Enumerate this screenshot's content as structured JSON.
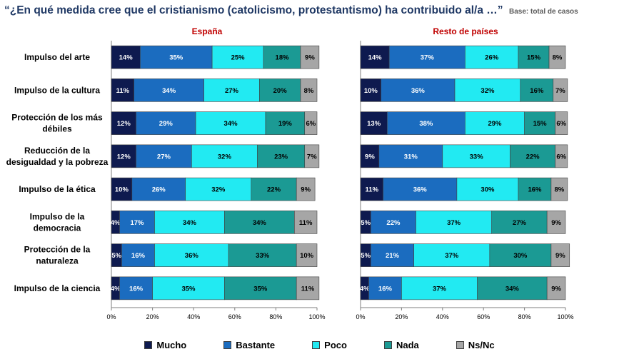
{
  "title": {
    "question": "“¿En qué medida cree que el cristianismo (catolicismo, protestantismo) ha contribuido al/a …”",
    "base": "Base: total de casos"
  },
  "colors": {
    "Mucho": "#0e1a4f",
    "Bastante": "#1b6cbf",
    "Poco": "#22eaf2",
    "Nada": "#1b9a94",
    "Ns/Nc": "#a6a6a6"
  },
  "legend": [
    "Mucho",
    "Bastante",
    "Poco",
    "Nada",
    "Ns/Nc"
  ],
  "chart_data": [
    {
      "type": "bar",
      "orientation": "horizontal",
      "stacked": true,
      "title": "España",
      "categories": [
        "Impulso del arte",
        "Impulso de la cultura",
        "Protección de los más débiles",
        "Reducción de la desigualdad y la pobreza",
        "Impulso de la ética",
        "Impulso de la democracia",
        "Protección de la naturaleza",
        "Impulso de la ciencia"
      ],
      "category_lines": [
        [
          "Impulso del arte"
        ],
        [
          "Impulso de la cultura"
        ],
        [
          "Protección de los más",
          "débiles"
        ],
        [
          "Reducción de la",
          "desigualdad y la pobreza"
        ],
        [
          "Impulso de la ética"
        ],
        [
          "Impulso de la",
          "democracia"
        ],
        [
          "Protección de la",
          "naturaleza"
        ],
        [
          "Impulso de la ciencia"
        ]
      ],
      "series": [
        {
          "name": "Mucho",
          "values": [
            14,
            11,
            12,
            12,
            10,
            4,
            5,
            4
          ]
        },
        {
          "name": "Bastante",
          "values": [
            35,
            34,
            29,
            27,
            26,
            17,
            16,
            16
          ]
        },
        {
          "name": "Poco",
          "values": [
            25,
            27,
            34,
            32,
            32,
            34,
            36,
            35
          ]
        },
        {
          "name": "Nada",
          "values": [
            18,
            20,
            19,
            23,
            22,
            34,
            33,
            35
          ]
        },
        {
          "name": "Ns/Nc",
          "values": [
            9,
            8,
            6,
            7,
            9,
            11,
            10,
            11
          ]
        }
      ],
      "xlim": [
        0,
        100
      ],
      "xticks": [
        "0%",
        "20%",
        "40%",
        "60%",
        "80%",
        "100%"
      ]
    },
    {
      "type": "bar",
      "orientation": "horizontal",
      "stacked": true,
      "title": "Resto de países",
      "categories": [
        "Impulso del arte",
        "Impulso de la cultura",
        "Protección de los más débiles",
        "Reducción de la desigualdad y la pobreza",
        "Impulso de la ética",
        "Impulso de la democracia",
        "Protección de la naturaleza",
        "Impulso de la ciencia"
      ],
      "series": [
        {
          "name": "Mucho",
          "values": [
            14,
            10,
            13,
            9,
            11,
            5,
            5,
            4
          ]
        },
        {
          "name": "Bastante",
          "values": [
            37,
            36,
            38,
            31,
            36,
            22,
            21,
            16
          ]
        },
        {
          "name": "Poco",
          "values": [
            26,
            32,
            29,
            33,
            30,
            37,
            37,
            37
          ]
        },
        {
          "name": "Nada",
          "values": [
            15,
            16,
            15,
            22,
            16,
            27,
            30,
            34
          ]
        },
        {
          "name": "Ns/Nc",
          "values": [
            8,
            7,
            6,
            6,
            8,
            9,
            9,
            9
          ]
        }
      ],
      "xlim": [
        0,
        100
      ],
      "xticks": [
        "0%",
        "20%",
        "40%",
        "60%",
        "80%",
        "100%"
      ]
    }
  ]
}
